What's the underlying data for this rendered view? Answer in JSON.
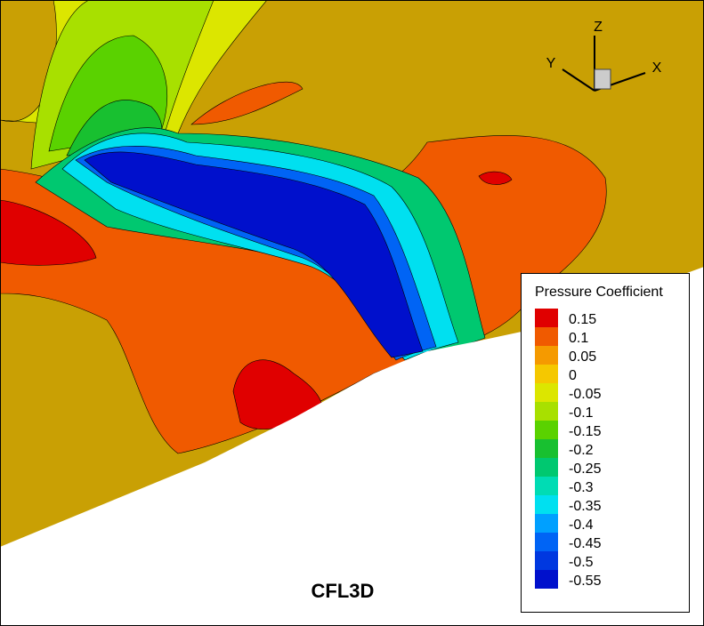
{
  "chart_data": {
    "type": "contour",
    "caption": "CFL3D",
    "legend_title": "Pressure Coefficient",
    "levels": [
      0.15,
      0.1,
      0.05,
      0,
      -0.05,
      -0.1,
      -0.15,
      -0.2,
      -0.25,
      -0.3,
      -0.35,
      -0.4,
      -0.45,
      -0.5,
      -0.55
    ],
    "colors": [
      "#e00000",
      "#f05a00",
      "#f59a00",
      "#f5c800",
      "#dce600",
      "#a8e000",
      "#5ad200",
      "#18c030",
      "#00c870",
      "#00dcb4",
      "#00e0f0",
      "#00a0ff",
      "#0064f5",
      "#0038e0",
      "#0010cc"
    ],
    "axis_labels": {
      "x": "X",
      "y": "Y",
      "z": "Z"
    }
  }
}
